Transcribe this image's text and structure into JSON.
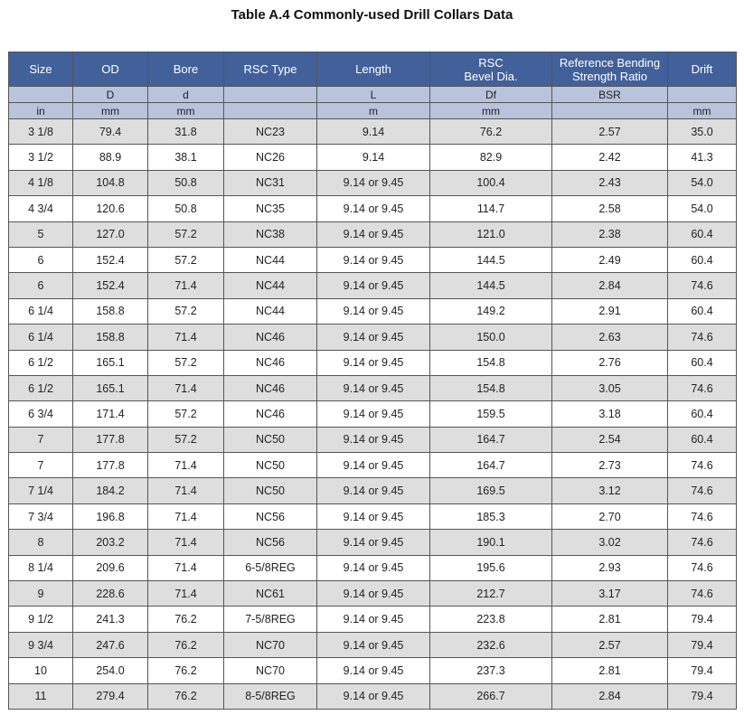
{
  "title": "Table A.4 Commonly-used Drill Collars Data",
  "headers": [
    "Size",
    "OD",
    "Bore",
    "RSC Type",
    "Length",
    "RSC\nBevel Dia.",
    "Reference Bending\nStrength Ratio",
    "Drift"
  ],
  "symbols": [
    "",
    "D",
    "d",
    "",
    "L",
    "Df",
    "BSR",
    ""
  ],
  "units": [
    "in",
    "mm",
    "mm",
    "",
    "m",
    "mm",
    "",
    "mm"
  ],
  "rows": [
    [
      "3 1/8",
      "79.4",
      "31.8",
      "NC23",
      "9.14",
      "76.2",
      "2.57",
      "35.0"
    ],
    [
      "3 1/2",
      "88.9",
      "38.1",
      "NC26",
      "9.14",
      "82.9",
      "2.42",
      "41.3"
    ],
    [
      "4 1/8",
      "104.8",
      "50.8",
      "NC31",
      "9.14 or 9.45",
      "100.4",
      "2.43",
      "54.0"
    ],
    [
      "4 3/4",
      "120.6",
      "50.8",
      "NC35",
      "9.14 or 9.45",
      "114.7",
      "2.58",
      "54.0"
    ],
    [
      "5",
      "127.0",
      "57.2",
      "NC38",
      "9.14 or 9.45",
      "121.0",
      "2.38",
      "60.4"
    ],
    [
      "6",
      "152.4",
      "57.2",
      "NC44",
      "9.14 or 9.45",
      "144.5",
      "2.49",
      "60.4"
    ],
    [
      "6",
      "152.4",
      "71.4",
      "NC44",
      "9.14 or 9.45",
      "144.5",
      "2.84",
      "74.6"
    ],
    [
      "6 1/4",
      "158.8",
      "57.2",
      "NC44",
      "9.14 or 9.45",
      "149.2",
      "2.91",
      "60.4"
    ],
    [
      "6 1/4",
      "158.8",
      "71.4",
      "NC46",
      "9.14 or 9.45",
      "150.0",
      "2.63",
      "74.6"
    ],
    [
      "6 1/2",
      "165.1",
      "57.2",
      "NC46",
      "9.14 or 9.45",
      "154.8",
      "2.76",
      "60.4"
    ],
    [
      "6 1/2",
      "165.1",
      "71.4",
      "NC46",
      "9.14 or 9.45",
      "154.8",
      "3.05",
      "74.6"
    ],
    [
      "6 3/4",
      "171.4",
      "57.2",
      "NC46",
      "9.14 or 9.45",
      "159.5",
      "3.18",
      "60.4"
    ],
    [
      "7",
      "177.8",
      "57.2",
      "NC50",
      "9.14 or 9.45",
      "164.7",
      "2.54",
      "60.4"
    ],
    [
      "7",
      "177.8",
      "71.4",
      "NC50",
      "9.14 or 9.45",
      "164.7",
      "2.73",
      "74.6"
    ],
    [
      "7 1/4",
      "184.2",
      "71.4",
      "NC50",
      "9.14 or 9.45",
      "169.5",
      "3.12",
      "74.6"
    ],
    [
      "7 3/4",
      "196.8",
      "71.4",
      "NC56",
      "9.14 or 9.45",
      "185.3",
      "2.70",
      "74.6"
    ],
    [
      "8",
      "203.2",
      "71.4",
      "NC56",
      "9.14 or 9.45",
      "190.1",
      "3.02",
      "74.6"
    ],
    [
      "8 1/4",
      "209.6",
      "71.4",
      "6-5/8REG",
      "9.14 or 9.45",
      "195.6",
      "2.93",
      "74.6"
    ],
    [
      "9",
      "228.6",
      "71.4",
      "NC61",
      "9.14 or 9.45",
      "212.7",
      "3.17",
      "74.6"
    ],
    [
      "9 1/2",
      "241.3",
      "76.2",
      "7-5/8REG",
      "9.14 or 9.45",
      "223.8",
      "2.81",
      "79.4"
    ],
    [
      "9 3/4",
      "247.6",
      "76.2",
      "NC70",
      "9.14 or 9.45",
      "232.6",
      "2.57",
      "79.4"
    ],
    [
      "10",
      "254.0",
      "76.2",
      "NC70",
      "9.14 or 9.45",
      "237.3",
      "2.81",
      "79.4"
    ],
    [
      "11",
      "279.4",
      "76.2",
      "8-5/8REG",
      "9.14 or 9.45",
      "266.7",
      "2.84",
      "79.4"
    ]
  ],
  "colors": {
    "header_bg": "#42609a",
    "subheader_bg": "#b9c3dc",
    "alt_row_bg": "#dedede"
  }
}
